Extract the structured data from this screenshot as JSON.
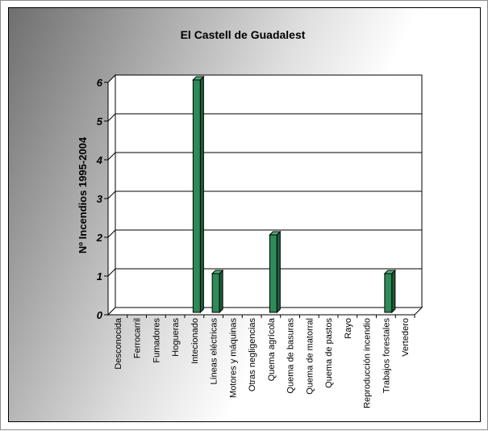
{
  "chart_data": {
    "type": "bar",
    "title": "El Castell de Guadalest",
    "xlabel": "",
    "ylabel": "Nº Incendios 1995-2004",
    "categories": [
      "Desconocida",
      "Ferrocarril",
      "Fumadores",
      "Hogueras",
      "Intecionado",
      "Líneas eléctricas",
      "Motores y máquinas",
      "Otras negligencias",
      "Quema agrícola",
      "Quema de basuras",
      "Quema de matorral",
      "Quema de pastos",
      "Rayo",
      "Reproducción incendio",
      "Trabajos forestales",
      "Vertedero"
    ],
    "values": [
      0,
      0,
      0,
      0,
      6,
      1,
      0,
      0,
      2,
      0,
      0,
      0,
      0,
      0,
      1,
      0
    ],
    "yticks": [
      "0",
      "1",
      "2",
      "3",
      "4",
      "5",
      "6"
    ],
    "ylim": [
      0,
      6
    ],
    "grid": true,
    "legend": "none",
    "colors": {
      "bar_front": "#2e8b57",
      "bar_side": "#1f5c3a",
      "bar_top": "#4fb07a",
      "grid": "#000000",
      "plot_bg": "#ffffff"
    }
  }
}
